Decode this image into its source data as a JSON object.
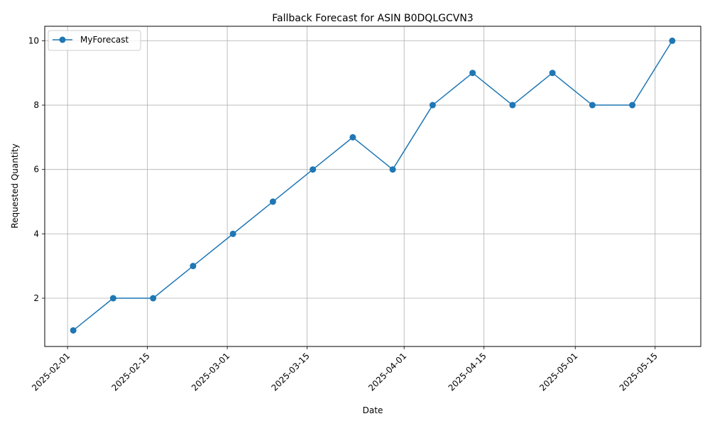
{
  "chart_data": {
    "type": "line",
    "title": "Fallback Forecast for ASIN B0DQLGCVN3",
    "xlabel": "Date",
    "ylabel": "Requested Quantity",
    "x_is_date": true,
    "x_tick_labels": [
      "2025-02-01",
      "2025-02-15",
      "2025-03-01",
      "2025-03-15",
      "2025-04-01",
      "2025-04-15",
      "2025-05-01",
      "2025-05-15"
    ],
    "y_ticks": [
      2,
      4,
      6,
      8,
      10
    ],
    "ylim": [
      0.5,
      10.45
    ],
    "xlim": [
      "2025-01-28",
      "2025-05-23"
    ],
    "grid": true,
    "legend_position": "upper-left",
    "series": [
      {
        "name": "MyForecast",
        "color": "#1f77b4",
        "marker": "circle",
        "x": [
          "2025-02-02",
          "2025-02-09",
          "2025-02-16",
          "2025-02-23",
          "2025-03-02",
          "2025-03-09",
          "2025-03-16",
          "2025-03-23",
          "2025-03-30",
          "2025-04-06",
          "2025-04-13",
          "2025-04-20",
          "2025-04-27",
          "2025-05-04",
          "2025-05-11",
          "2025-05-18"
        ],
        "values": [
          1,
          2,
          2,
          3,
          4,
          5,
          6,
          7,
          6,
          8,
          9,
          8,
          9,
          8,
          8,
          10
        ]
      }
    ]
  }
}
